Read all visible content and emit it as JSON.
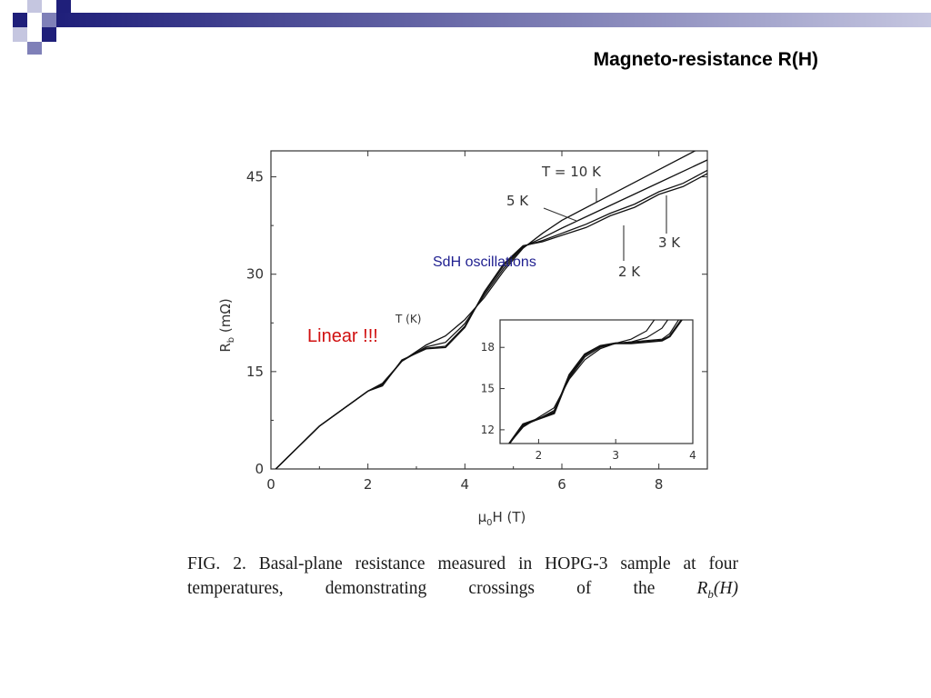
{
  "slide": {
    "title": "Magneto-resistance R(H)",
    "accent_colors": [
      "#1f1f7a",
      "#7f80b8",
      "#c5c6e0"
    ]
  },
  "annotations": {
    "sdh": "SdH oscillations",
    "sdh_color": "#1f1f90",
    "linear": "Linear !!!",
    "linear_color": "#d01010"
  },
  "caption": {
    "text": "FIG. 2.   Basal-plane resistance measured in HOPG-3 sample at four temperatures, demonstrating crossings of the",
    "math": "R_b(H)"
  },
  "chart_data": [
    {
      "type": "line",
      "xlabel": "μ₀H (T)",
      "ylabel": "R_b (mΩ)",
      "xlim": [
        0,
        9
      ],
      "ylim": [
        0,
        49
      ],
      "xticks": [
        0,
        2,
        4,
        6,
        8
      ],
      "yticks": [
        0,
        15,
        30,
        45
      ],
      "grid": false,
      "legend_title": "T (K)",
      "series": [
        {
          "name": "T = 10 K",
          "x": [
            0.1,
            1,
            2,
            2.3,
            2.7,
            3.2,
            3.6,
            4.0,
            4.4,
            4.8,
            5.2,
            5.6,
            6.0,
            7,
            8,
            9
          ],
          "y": [
            0,
            6.6,
            12.0,
            13.2,
            16.6,
            19.1,
            20.5,
            23.0,
            26.4,
            30.5,
            34.0,
            36.3,
            38.3,
            42.2,
            46.1,
            50.0
          ]
        },
        {
          "name": "5 K",
          "x": [
            0.1,
            1,
            2,
            2.3,
            2.7,
            3.2,
            3.6,
            4.0,
            4.4,
            4.8,
            5.2,
            5.6,
            6.0,
            7,
            8,
            9
          ],
          "y": [
            0,
            6.6,
            12.0,
            13.0,
            16.6,
            18.8,
            19.5,
            22.4,
            26.8,
            30.9,
            34.2,
            35.6,
            37.1,
            40.6,
            44.1,
            47.6
          ]
        },
        {
          "name": "3 K",
          "x": [
            0.1,
            1,
            2,
            2.3,
            2.7,
            3.2,
            3.6,
            4.0,
            4.4,
            4.8,
            5.2,
            5.6,
            6.0,
            6.5,
            7,
            7.5,
            8,
            8.5,
            9
          ],
          "y": [
            0,
            6.6,
            12.0,
            12.9,
            16.7,
            18.6,
            18.9,
            22.0,
            27.1,
            31.3,
            34.3,
            35.2,
            36.3,
            37.7,
            39.4,
            40.8,
            42.7,
            44.0,
            46.0
          ]
        },
        {
          "name": "2 K",
          "x": [
            0.1,
            1,
            2,
            2.3,
            2.7,
            3.2,
            3.6,
            4.0,
            4.4,
            4.8,
            5.2,
            5.6,
            6.0,
            6.5,
            7,
            7.5,
            8,
            8.5,
            9
          ],
          "y": [
            0,
            6.6,
            12.0,
            12.8,
            16.8,
            18.5,
            18.7,
            21.8,
            27.3,
            31.6,
            34.4,
            35.0,
            36.0,
            37.2,
            39.0,
            40.3,
            42.3,
            43.5,
            45.5
          ]
        }
      ]
    },
    {
      "type": "line",
      "xlim": [
        1.5,
        4
      ],
      "ylim": [
        11,
        20
      ],
      "xticks": [
        2,
        3,
        4
      ],
      "yticks": [
        12,
        15,
        18
      ],
      "grid": false,
      "series": [
        {
          "name": "",
          "x": [
            1.62,
            1.8,
            2.0,
            2.2,
            2.4,
            2.6,
            2.8,
            3.0,
            3.2,
            3.4,
            3.5,
            3.75
          ],
          "y": [
            11.0,
            12.2,
            12.9,
            13.6,
            15.7,
            17.1,
            17.9,
            18.3,
            18.6,
            19.2,
            20.0,
            21.0
          ]
        },
        {
          "name": "",
          "x": [
            1.62,
            1.8,
            2.0,
            2.2,
            2.4,
            2.6,
            2.8,
            3.0,
            3.2,
            3.4,
            3.6,
            3.75
          ],
          "y": [
            11.0,
            12.3,
            12.8,
            13.4,
            15.8,
            17.3,
            18.0,
            18.3,
            18.4,
            18.7,
            19.4,
            20.6
          ]
        },
        {
          "name": "",
          "x": [
            1.62,
            1.8,
            2.0,
            2.2,
            2.4,
            2.6,
            2.8,
            3.0,
            3.2,
            3.4,
            3.6,
            3.7,
            3.85
          ],
          "y": [
            11.0,
            12.3,
            12.8,
            13.3,
            15.9,
            17.4,
            18.1,
            18.3,
            18.4,
            18.5,
            18.6,
            19.0,
            20.3
          ]
        },
        {
          "name": "",
          "x": [
            1.62,
            1.8,
            2.0,
            2.2,
            2.4,
            2.6,
            2.8,
            3.0,
            3.2,
            3.4,
            3.6,
            3.7,
            3.88
          ],
          "y": [
            11.0,
            12.4,
            12.8,
            13.2,
            16.0,
            17.5,
            18.1,
            18.3,
            18.3,
            18.4,
            18.5,
            18.8,
            20.2
          ]
        }
      ]
    }
  ]
}
